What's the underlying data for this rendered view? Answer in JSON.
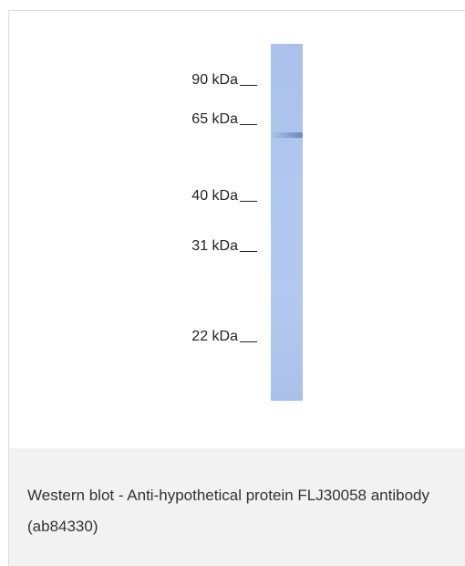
{
  "markers": [
    {
      "label": "90 kDa"
    },
    {
      "label": "65 kDa"
    },
    {
      "label": "40 kDa"
    },
    {
      "label": "31 kDa"
    },
    {
      "label": "22 kDa"
    }
  ],
  "caption": "Western blot - Anti-hypothetical protein FLJ30058 antibody (ab84330)",
  "colors": {
    "lane": "#afc6ee",
    "caption_background": "#f2f2f2",
    "text": "#333333"
  }
}
